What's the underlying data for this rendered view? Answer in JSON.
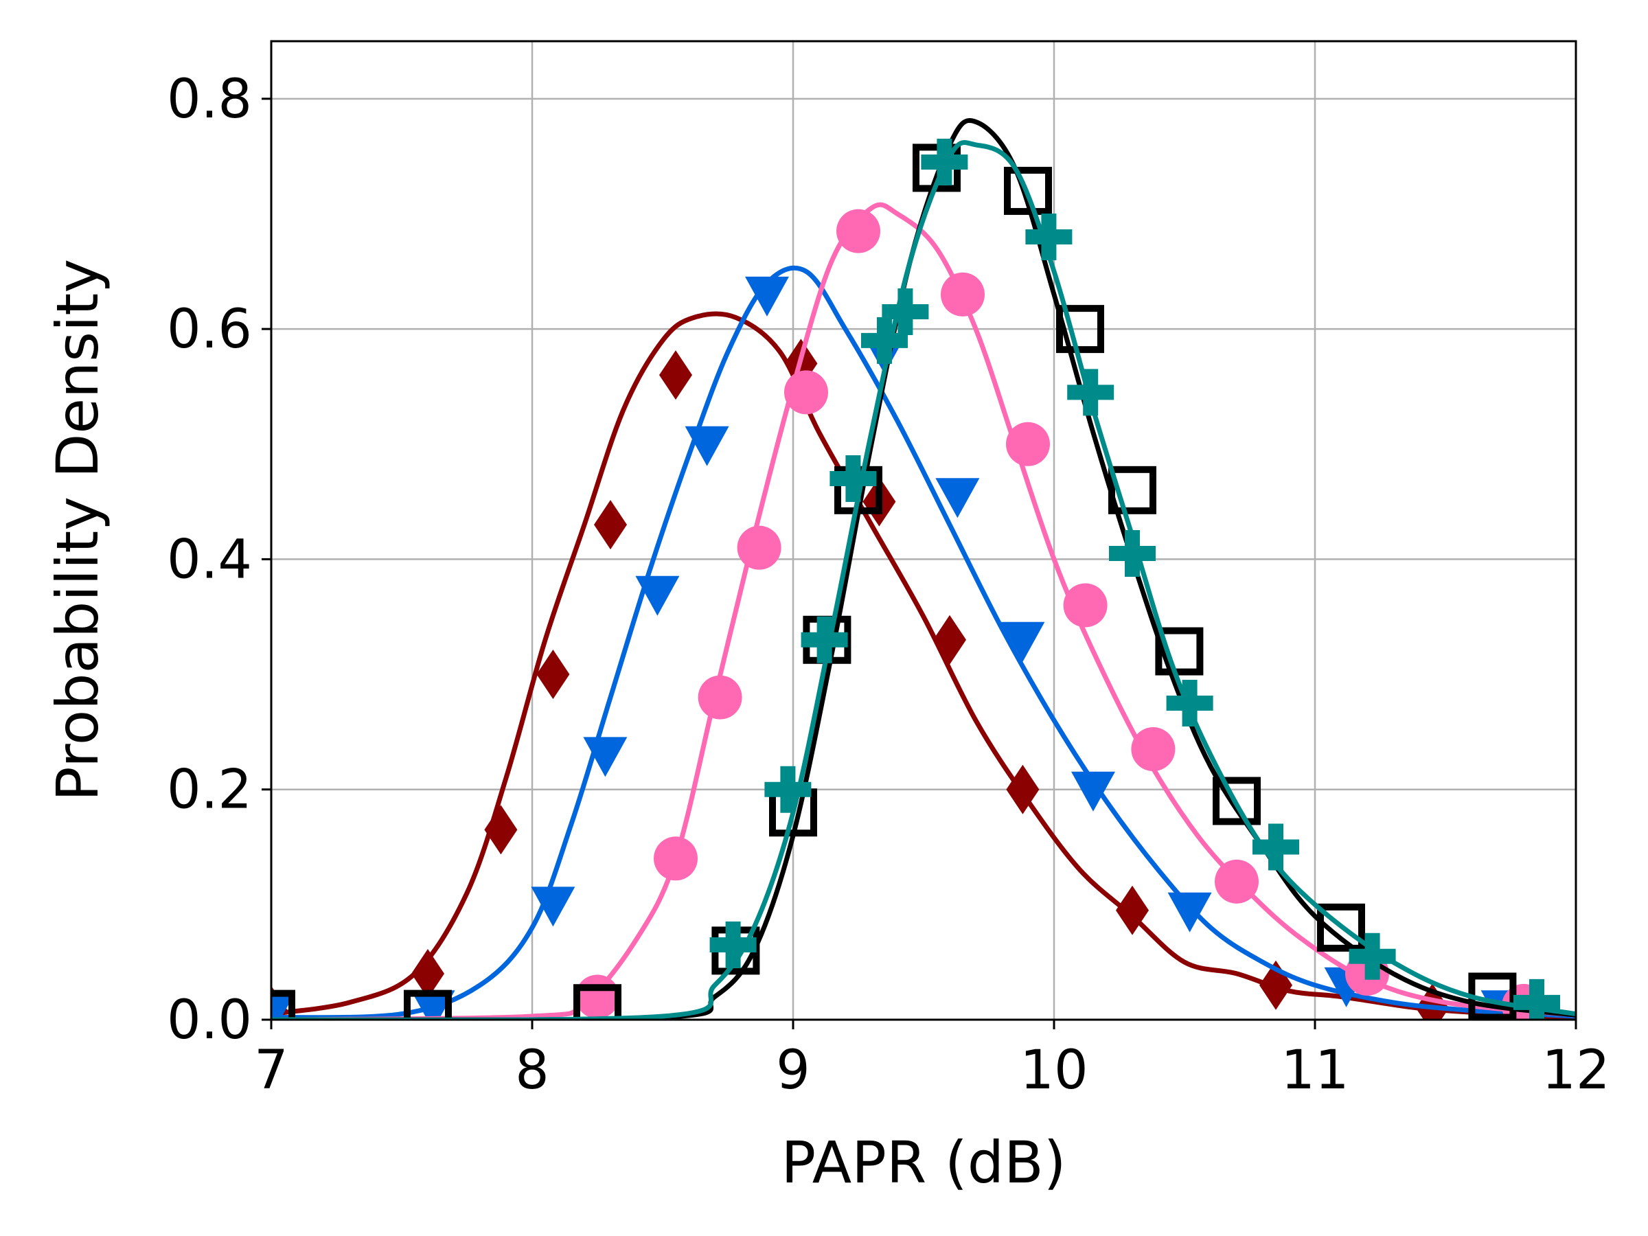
{
  "chart_data": {
    "type": "line",
    "xlabel": "PAPR (dB)",
    "ylabel": "Probability Density",
    "xlim": [
      7,
      12
    ],
    "ylim": [
      0,
      0.85
    ],
    "xticks": [
      7,
      8,
      9,
      10,
      11,
      12
    ],
    "xtick_labels": [
      "7",
      "8",
      "9",
      "10",
      "11",
      "12"
    ],
    "yticks": [
      0.0,
      0.2,
      0.4,
      0.6,
      0.8
    ],
    "ytick_labels": [
      "0.0",
      "0.2",
      "0.4",
      "0.6",
      "0.8"
    ],
    "grid": true,
    "legend": "none",
    "series": [
      {
        "color": "#8b0000",
        "marker": "diamond",
        "curve": {
          "x": [
            7.0,
            7.3,
            7.55,
            7.75,
            7.9,
            8.05,
            8.2,
            8.35,
            8.5,
            8.62,
            8.78,
            8.95,
            9.1,
            9.3,
            9.5,
            9.7,
            9.9,
            10.1,
            10.3,
            10.5,
            10.7,
            10.9,
            11.1,
            11.4,
            11.7,
            12.0
          ],
          "y": [
            0.005,
            0.015,
            0.04,
            0.11,
            0.21,
            0.33,
            0.43,
            0.53,
            0.59,
            0.61,
            0.61,
            0.58,
            0.51,
            0.43,
            0.35,
            0.26,
            0.19,
            0.13,
            0.09,
            0.05,
            0.04,
            0.025,
            0.02,
            0.01,
            0.005,
            0.002
          ]
        },
        "markers": {
          "x": [
            7.0,
            7.6,
            7.88,
            8.08,
            8.3,
            8.55,
            9.03,
            9.33,
            9.6,
            9.88,
            10.3,
            10.85,
            11.45
          ],
          "y": [
            0.008,
            0.04,
            0.165,
            0.3,
            0.43,
            0.56,
            0.57,
            0.45,
            0.33,
            0.2,
            0.095,
            0.03,
            0.01
          ]
        }
      },
      {
        "color": "#0066dd",
        "marker": "triangle-down",
        "curve": {
          "x": [
            7.0,
            7.5,
            7.8,
            8.0,
            8.15,
            8.3,
            8.45,
            8.6,
            8.75,
            8.9,
            9.05,
            9.2,
            9.4,
            9.6,
            9.8,
            10.0,
            10.2,
            10.4,
            10.6,
            10.8,
            11.0,
            11.3,
            11.6,
            12.0
          ],
          "y": [
            0.002,
            0.005,
            0.03,
            0.08,
            0.17,
            0.28,
            0.39,
            0.49,
            0.58,
            0.64,
            0.65,
            0.6,
            0.52,
            0.43,
            0.34,
            0.26,
            0.19,
            0.13,
            0.08,
            0.05,
            0.03,
            0.015,
            0.008,
            0.003
          ]
        },
        "markers": {
          "x": [
            7.0,
            7.62,
            8.08,
            8.28,
            8.48,
            8.67,
            8.9,
            9.35,
            9.63,
            9.88,
            10.15,
            10.52,
            11.12,
            11.72
          ],
          "y": [
            0.005,
            0.01,
            0.1,
            0.23,
            0.37,
            0.5,
            0.63,
            0.58,
            0.455,
            0.33,
            0.2,
            0.095,
            0.03,
            0.01
          ]
        }
      },
      {
        "color": "#ff69b4",
        "marker": "circle",
        "curve": {
          "x": [
            7.0,
            8.0,
            8.2,
            8.4,
            8.55,
            8.7,
            8.85,
            9.0,
            9.15,
            9.3,
            9.4,
            9.55,
            9.7,
            9.85,
            10.0,
            10.15,
            10.35,
            10.55,
            10.75,
            10.95,
            11.2,
            11.5,
            12.0
          ],
          "y": [
            0.0,
            0.003,
            0.015,
            0.07,
            0.14,
            0.28,
            0.42,
            0.55,
            0.66,
            0.705,
            0.7,
            0.67,
            0.6,
            0.5,
            0.4,
            0.32,
            0.23,
            0.16,
            0.11,
            0.07,
            0.035,
            0.015,
            0.004
          ]
        },
        "markers": {
          "x": [
            8.25,
            8.55,
            8.72,
            8.87,
            9.05,
            9.25,
            9.65,
            9.9,
            10.12,
            10.38,
            10.7,
            11.2,
            11.8
          ],
          "y": [
            0.02,
            0.14,
            0.28,
            0.41,
            0.545,
            0.685,
            0.63,
            0.5,
            0.36,
            0.235,
            0.12,
            0.04,
            0.012
          ]
        }
      },
      {
        "color": "#000000",
        "marker": "square-open",
        "curve": {
          "x": [
            7.0,
            8.5,
            8.7,
            8.85,
            9.0,
            9.15,
            9.3,
            9.45,
            9.6,
            9.7,
            9.85,
            10.0,
            10.15,
            10.3,
            10.45,
            10.6,
            10.8,
            11.0,
            11.3,
            11.6,
            12.0
          ],
          "y": [
            0.0,
            0.002,
            0.02,
            0.06,
            0.16,
            0.32,
            0.5,
            0.66,
            0.76,
            0.78,
            0.74,
            0.63,
            0.51,
            0.4,
            0.3,
            0.22,
            0.15,
            0.09,
            0.04,
            0.015,
            0.004
          ]
        },
        "markers": {
          "x": [
            7.0,
            7.6,
            8.25,
            8.78,
            9.0,
            9.13,
            9.25,
            9.55,
            9.9,
            10.1,
            10.3,
            10.48,
            10.7,
            11.1,
            11.68
          ],
          "y": [
            0.005,
            0.005,
            0.01,
            0.06,
            0.18,
            0.33,
            0.46,
            0.74,
            0.72,
            0.6,
            0.46,
            0.32,
            0.19,
            0.08,
            0.02
          ]
        }
      },
      {
        "color": "#008b8b",
        "marker": "plus",
        "curve": {
          "x": [
            7.0,
            8.5,
            8.7,
            8.85,
            9.0,
            9.15,
            9.3,
            9.45,
            9.6,
            9.7,
            9.85,
            10.0,
            10.15,
            10.3,
            10.45,
            10.6,
            10.8,
            11.0,
            11.3,
            11.6,
            12.0
          ],
          "y": [
            0.0,
            0.003,
            0.03,
            0.08,
            0.18,
            0.34,
            0.51,
            0.66,
            0.75,
            0.76,
            0.74,
            0.65,
            0.53,
            0.42,
            0.31,
            0.23,
            0.15,
            0.1,
            0.05,
            0.02,
            0.005
          ]
        },
        "markers": {
          "x": [
            8.77,
            8.98,
            9.12,
            9.23,
            9.35,
            9.43,
            9.58,
            9.98,
            10.14,
            10.3,
            10.52,
            10.85,
            11.22,
            11.85
          ],
          "y": [
            0.065,
            0.2,
            0.33,
            0.47,
            0.59,
            0.615,
            0.745,
            0.68,
            0.545,
            0.405,
            0.275,
            0.15,
            0.055,
            0.015
          ]
        }
      }
    ]
  }
}
